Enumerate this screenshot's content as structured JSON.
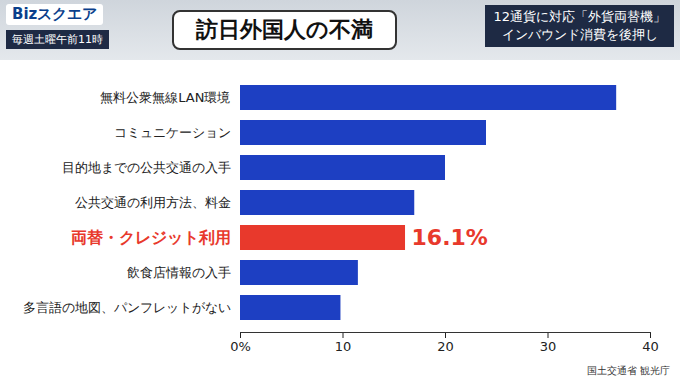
{
  "header": {
    "program": "Bizスクエア",
    "schedule": "毎週土曜午前11時",
    "headline": [
      "12通貨に対応「外貨両替機」",
      "インバウンド消費を後押し"
    ]
  },
  "chart_data": {
    "type": "bar",
    "orientation": "horizontal",
    "title": "訪日外国人の不満",
    "source": "国土交通省 観光庁",
    "categories": [
      "無料公衆無線LAN環境",
      "コミュニケーション",
      "目的地までの公共交通の入手",
      "公共交通の利用方法、料金",
      "両替・クレジット利用",
      "飲食店情報の入手",
      "多言語の地図、パンフレットがない"
    ],
    "values": [
      36.7,
      24.0,
      20.0,
      17.0,
      16.1,
      11.5,
      9.8
    ],
    "value_labels": [
      null,
      null,
      null,
      null,
      "16.1%",
      null,
      null
    ],
    "data_labels": true,
    "color": "#1d3fc2",
    "colors": [
      "#1d3fc2",
      "#1d3fc2",
      "#1d3fc2",
      "#1d3fc2",
      "#e8392c",
      "#1d3fc2",
      "#1d3fc2"
    ],
    "xlim": [
      0,
      40
    ],
    "xticks": [
      {
        "value": 0,
        "label": "0%"
      },
      10,
      20,
      30,
      40
    ],
    "grid": false
  }
}
